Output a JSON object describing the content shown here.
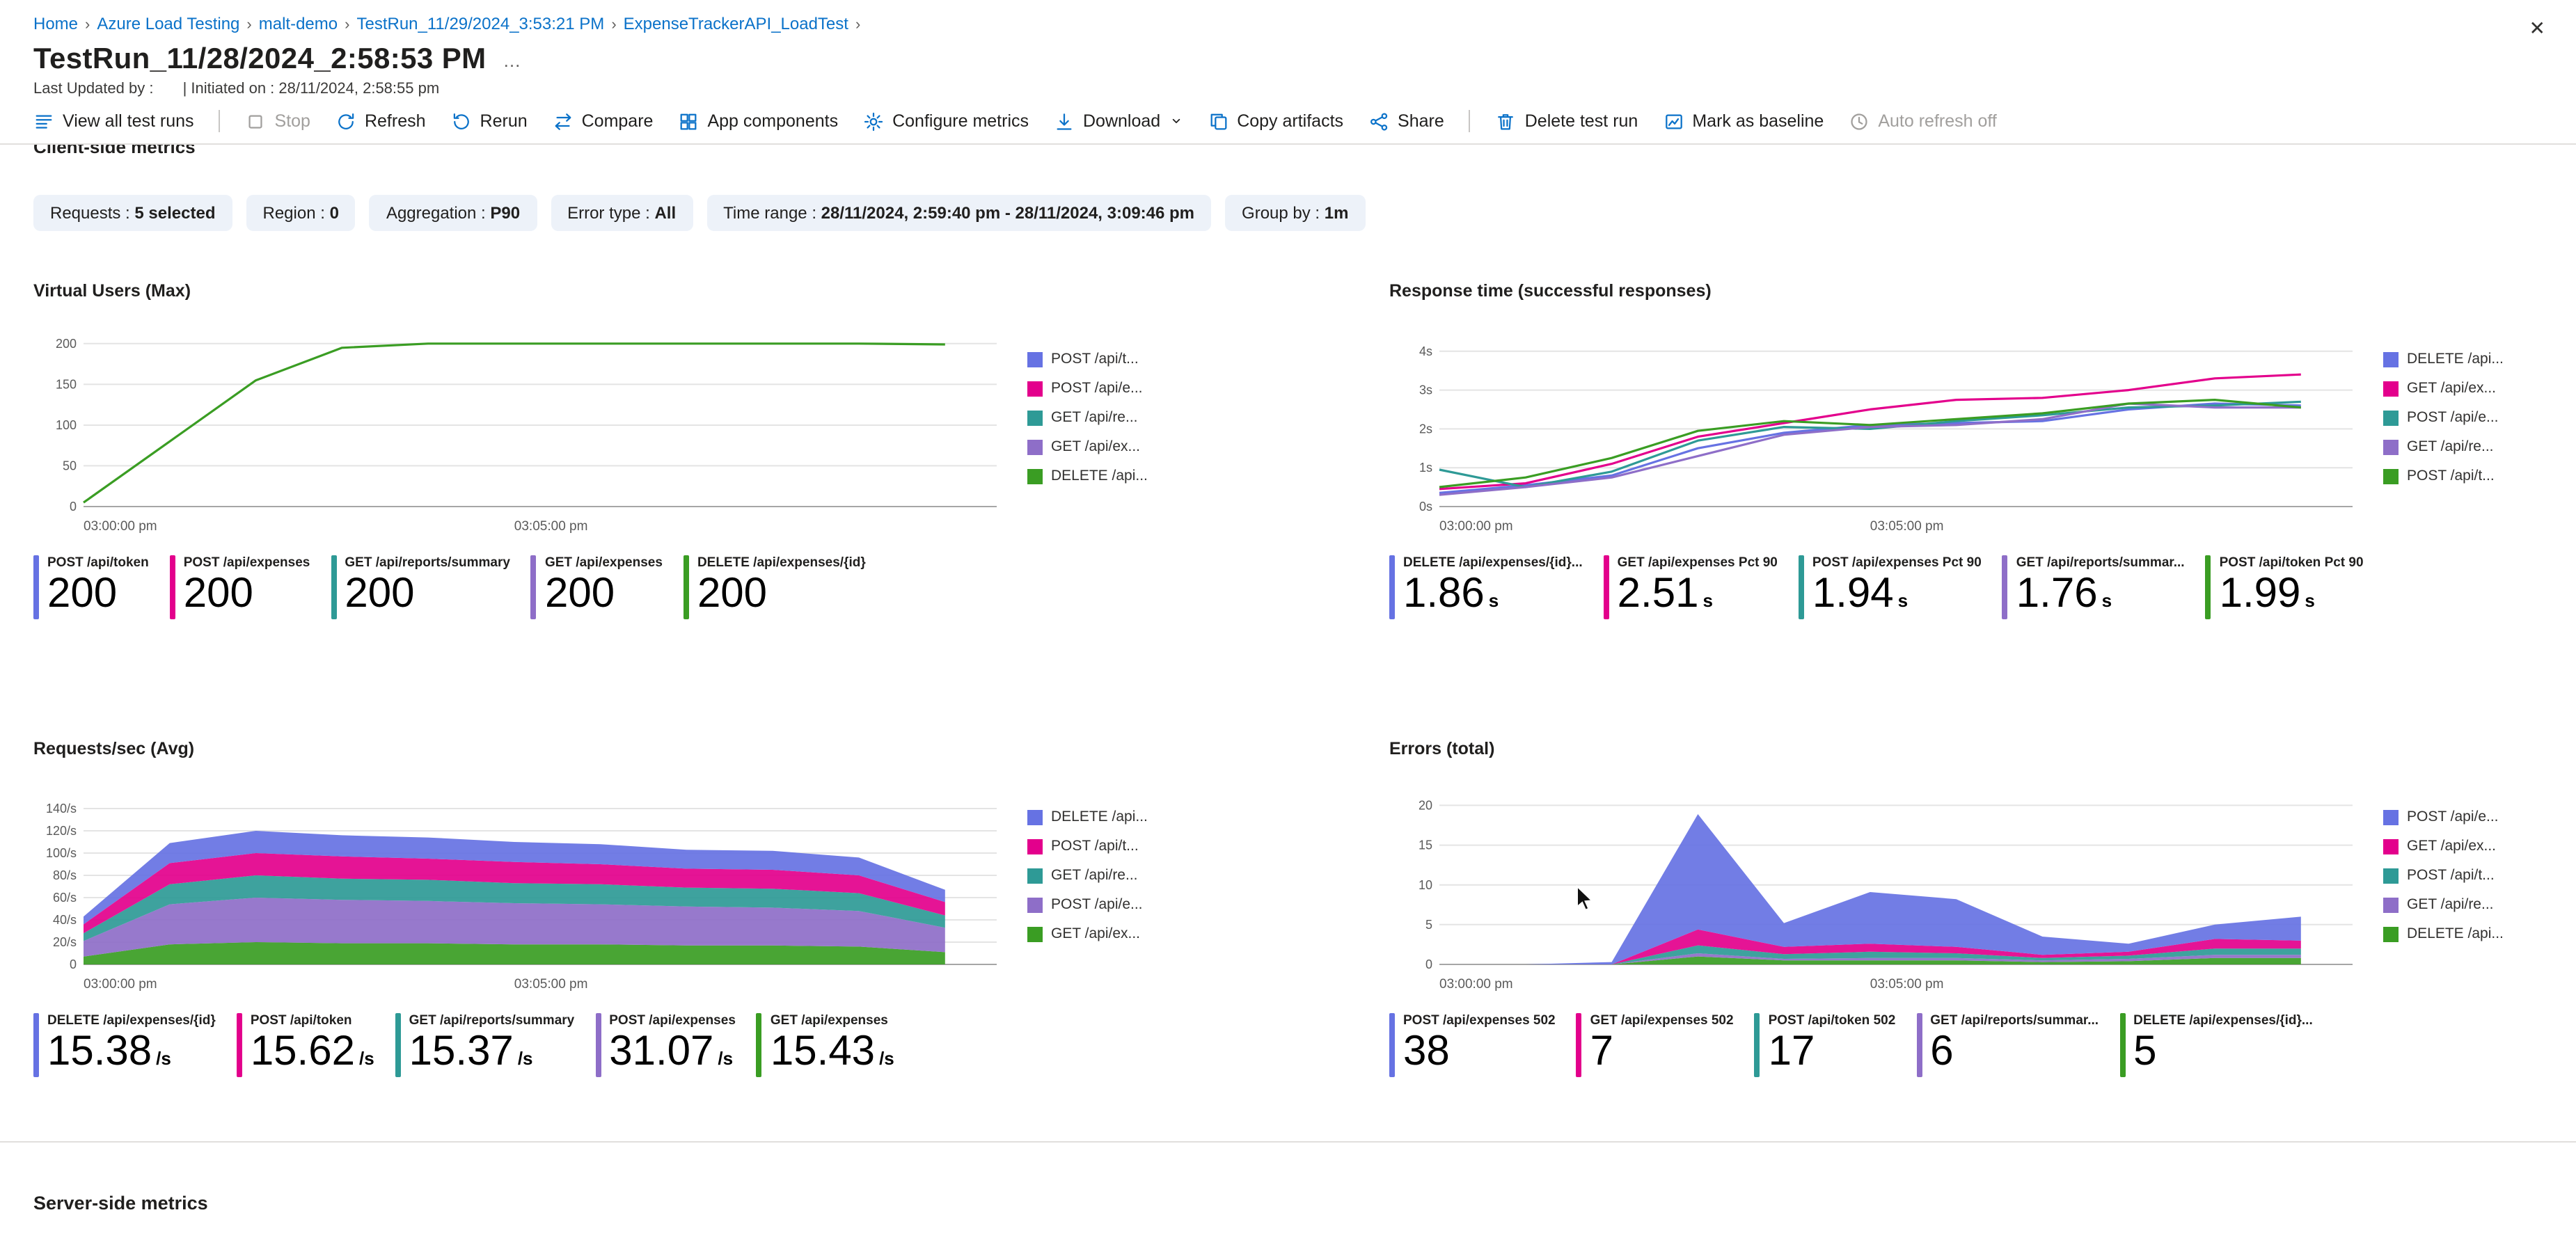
{
  "header": {
    "title": "TestRun_11/28/2024_2:58:53 PM",
    "last_updated_label": "Last Updated by :",
    "initiated_label": "| Initiated on : 28/11/2024, 2:58:55 pm"
  },
  "icons": {
    "more": "…",
    "close": "✕",
    "breadcrumb_separator": "›"
  },
  "breadcrumb": {
    "items": [
      "Home",
      "Azure Load Testing",
      "malt-demo",
      "TestRun_11/29/2024_3:53:21 PM",
      "ExpenseTrackerAPI_LoadTest"
    ]
  },
  "toolbar": {
    "items": [
      {
        "label": "View all test runs",
        "icon": "runs"
      },
      {
        "type": "divider"
      },
      {
        "label": "Stop",
        "icon": "stop",
        "disabled": true
      },
      {
        "label": "Refresh",
        "icon": "refresh"
      },
      {
        "label": "Rerun",
        "icon": "rerun"
      },
      {
        "label": "Compare",
        "icon": "compare"
      },
      {
        "label": "App components",
        "icon": "components"
      },
      {
        "label": "Configure metrics",
        "icon": "gear"
      },
      {
        "label": "Download",
        "icon": "download",
        "chevron": true
      },
      {
        "label": "Copy artifacts",
        "icon": "copy"
      },
      {
        "label": "Share",
        "icon": "share"
      },
      {
        "type": "divider"
      },
      {
        "label": "Delete test run",
        "icon": "trash"
      },
      {
        "label": "Mark as baseline",
        "icon": "baseline"
      },
      {
        "label": "Auto refresh off",
        "icon": "clock",
        "disabled": true
      }
    ]
  },
  "sections": {
    "client_side": "Client-side metrics",
    "server_side": "Server-side metrics"
  },
  "filters": [
    {
      "label": "Requests",
      "value": "5 selected"
    },
    {
      "label": "Region",
      "value": "0"
    },
    {
      "label": "Aggregation",
      "value": "P90"
    },
    {
      "label": "Error type",
      "value": "All"
    },
    {
      "label": "Time range",
      "value": "28/11/2024, 2:59:40 pm - 28/11/2024, 3:09:46 pm"
    },
    {
      "label": "Group by",
      "value": "1m"
    }
  ],
  "palette": {
    "blue": "#6672E3",
    "magenta": "#E3008C",
    "teal": "#2E9A96",
    "purple": "#8E6EC8",
    "green": "#3A9D23"
  },
  "chart_data": [
    {
      "title": "Virtual Users (Max)",
      "type": "line",
      "ymax": 205,
      "xmax": 10.6,
      "yticks": [
        {
          "v": 200,
          "label": "200"
        },
        {
          "v": 150,
          "label": "150"
        },
        {
          "v": 100,
          "label": "100"
        },
        {
          "v": 50,
          "label": "50"
        },
        {
          "v": 0,
          "label": "0"
        }
      ],
      "xticks": [
        {
          "x": 0,
          "label": "03:00:00 pm"
        },
        {
          "x": 5,
          "label": "03:05:00 pm"
        }
      ],
      "legend": [
        {
          "label": "POST /api/t...",
          "color": "#6672E3"
        },
        {
          "label": "POST /api/e...",
          "color": "#E3008C"
        },
        {
          "label": "GET /api/re...",
          "color": "#2E9A96"
        },
        {
          "label": "GET /api/ex...",
          "color": "#8E6EC8"
        },
        {
          "label": "DELETE /api...",
          "color": "#3A9D23"
        }
      ],
      "series": [
        {
          "name": "DELETE /api/expenses/{id}",
          "color": "#3A9D23",
          "values": [
            5,
            80,
            155,
            195,
            200,
            200,
            200,
            200,
            200,
            200,
            199
          ]
        }
      ],
      "stats": [
        {
          "label": "POST /api/token",
          "value": "200",
          "unit": "",
          "color": "#6672E3"
        },
        {
          "label": "POST /api/expenses",
          "value": "200",
          "unit": "",
          "color": "#E3008C"
        },
        {
          "label": "GET /api/reports/summary",
          "value": "200",
          "unit": "",
          "color": "#2E9A96"
        },
        {
          "label": "GET /api/expenses",
          "value": "200",
          "unit": "",
          "color": "#8E6EC8"
        },
        {
          "label": "DELETE /api/expenses/{id}",
          "value": "200",
          "unit": "",
          "color": "#3A9D23"
        }
      ]
    },
    {
      "title": "Response time (successful responses)",
      "type": "line",
      "ymax": 4.3,
      "xmax": 10.6,
      "yticks": [
        {
          "v": 4,
          "label": "4s"
        },
        {
          "v": 3,
          "label": "3s"
        },
        {
          "v": 2,
          "label": "2s"
        },
        {
          "v": 1,
          "label": "1s"
        },
        {
          "v": 0,
          "label": "0s"
        }
      ],
      "xticks": [
        {
          "x": 0,
          "label": "03:00:00 pm"
        },
        {
          "x": 5,
          "label": "03:05:00 pm"
        }
      ],
      "legend": [
        {
          "label": "DELETE /api...",
          "color": "#6672E3"
        },
        {
          "label": "GET /api/ex...",
          "color": "#E3008C"
        },
        {
          "label": "POST /api/e...",
          "color": "#2E9A96"
        },
        {
          "label": "GET /api/re...",
          "color": "#8E6EC8"
        },
        {
          "label": "POST /api/t...",
          "color": "#3A9D23"
        }
      ],
      "series": [
        {
          "name": "DELETE /api/expenses/{id}",
          "color": "#6672E3",
          "values": [
            0.35,
            0.55,
            0.8,
            1.5,
            1.9,
            2.1,
            2.15,
            2.2,
            2.5,
            2.65,
            2.6
          ]
        },
        {
          "name": "GET /api/expenses",
          "color": "#E3008C",
          "values": [
            0.45,
            0.6,
            1.1,
            1.8,
            2.15,
            2.5,
            2.75,
            2.8,
            3.0,
            3.3,
            3.4
          ]
        },
        {
          "name": "POST /api/expenses",
          "color": "#2E9A96",
          "values": [
            0.95,
            0.5,
            0.9,
            1.7,
            2.05,
            2.0,
            2.2,
            2.35,
            2.55,
            2.6,
            2.7
          ]
        },
        {
          "name": "GET /api/reports/summary",
          "color": "#8E6EC8",
          "values": [
            0.3,
            0.5,
            0.75,
            1.3,
            1.85,
            2.05,
            2.1,
            2.25,
            2.65,
            2.55,
            2.55
          ]
        },
        {
          "name": "POST /api/token",
          "color": "#3A9D23",
          "values": [
            0.5,
            0.75,
            1.25,
            1.95,
            2.2,
            2.1,
            2.25,
            2.4,
            2.65,
            2.75,
            2.55
          ]
        }
      ],
      "stats": [
        {
          "label": "DELETE /api/expenses/{id}...",
          "value": "1.86",
          "unit": "s",
          "color": "#6672E3"
        },
        {
          "label": "GET /api/expenses Pct 90",
          "value": "2.51",
          "unit": "s",
          "color": "#E3008C"
        },
        {
          "label": "POST /api/expenses Pct 90",
          "value": "1.94",
          "unit": "s",
          "color": "#2E9A96"
        },
        {
          "label": "GET /api/reports/summar...",
          "value": "1.76",
          "unit": "s",
          "color": "#8E6EC8"
        },
        {
          "label": "POST /api/token Pct 90",
          "value": "1.99",
          "unit": "s",
          "color": "#3A9D23"
        }
      ]
    },
    {
      "title": "Requests/sec (Avg)",
      "type": "area",
      "ymax": 150,
      "xmax": 10.6,
      "yticks": [
        {
          "v": 140,
          "label": "140/s"
        },
        {
          "v": 120,
          "label": "120/s"
        },
        {
          "v": 100,
          "label": "100/s"
        },
        {
          "v": 80,
          "label": "80/s"
        },
        {
          "v": 60,
          "label": "60/s"
        },
        {
          "v": 40,
          "label": "40/s"
        },
        {
          "v": 20,
          "label": "20/s"
        },
        {
          "v": 0,
          "label": "0"
        }
      ],
      "xticks": [
        {
          "x": 0,
          "label": "03:00:00 pm"
        },
        {
          "x": 5,
          "label": "03:05:00 pm"
        }
      ],
      "legend": [
        {
          "label": "DELETE /api...",
          "color": "#6672E3"
        },
        {
          "label": "POST /api/t...",
          "color": "#E3008C"
        },
        {
          "label": "GET /api/re...",
          "color": "#2E9A96"
        },
        {
          "label": "POST /api/e...",
          "color": "#8E6EC8"
        },
        {
          "label": "GET /api/ex...",
          "color": "#3A9D23"
        }
      ],
      "series": [
        {
          "name": "GET /api/expenses",
          "color": "#3A9D23",
          "values": [
            7,
            18,
            20,
            19,
            19,
            18,
            18,
            17,
            17,
            16,
            11
          ]
        },
        {
          "name": "POST /api/expenses",
          "color": "#8E6EC8",
          "values": [
            14,
            36,
            40,
            39,
            38,
            37,
            36,
            35,
            34,
            32,
            22
          ]
        },
        {
          "name": "GET /api/reports/summary",
          "color": "#2E9A96",
          "values": [
            7,
            18,
            20,
            19,
            19,
            18,
            18,
            17,
            17,
            16,
            11
          ]
        },
        {
          "name": "POST /api/token",
          "color": "#E3008C",
          "values": [
            8,
            19,
            20,
            20,
            19,
            19,
            18,
            17,
            17,
            16,
            12
          ]
        },
        {
          "name": "DELETE /api/expenses/{id}",
          "color": "#6672E3",
          "values": [
            7,
            18,
            20,
            19,
            19,
            18,
            18,
            17,
            17,
            16,
            11
          ]
        }
      ],
      "stats": [
        {
          "label": "DELETE /api/expenses/{id}",
          "value": "15.38",
          "unit": "/s",
          "color": "#6672E3"
        },
        {
          "label": "POST /api/token",
          "value": "15.62",
          "unit": "/s",
          "color": "#E3008C"
        },
        {
          "label": "GET /api/reports/summary",
          "value": "15.37",
          "unit": "/s",
          "color": "#2E9A96"
        },
        {
          "label": "POST /api/expenses",
          "value": "31.07",
          "unit": "/s",
          "color": "#8E6EC8"
        },
        {
          "label": "GET /api/expenses",
          "value": "15.43",
          "unit": "/s",
          "color": "#3A9D23"
        }
      ]
    },
    {
      "title": "Errors (total)",
      "type": "area",
      "ymax": 21,
      "xmax": 10.6,
      "yticks": [
        {
          "v": 20,
          "label": "20"
        },
        {
          "v": 15,
          "label": "15"
        },
        {
          "v": 10,
          "label": "10"
        },
        {
          "v": 5,
          "label": "5"
        },
        {
          "v": 0,
          "label": "0"
        }
      ],
      "xticks": [
        {
          "x": 0,
          "label": "03:00:00 pm"
        },
        {
          "x": 5,
          "label": "03:05:00 pm"
        }
      ],
      "legend": [
        {
          "label": "POST /api/e...",
          "color": "#6672E3"
        },
        {
          "label": "GET /api/ex...",
          "color": "#E3008C"
        },
        {
          "label": "POST /api/t...",
          "color": "#2E9A96"
        },
        {
          "label": "GET /api/re...",
          "color": "#8E6EC8"
        },
        {
          "label": "DELETE /api...",
          "color": "#3A9D23"
        }
      ],
      "series": [
        {
          "name": "DELETE /api/expenses/{id}",
          "color": "#3A9D23",
          "values": [
            0,
            0,
            0,
            1,
            0.5,
            0.5,
            0.5,
            0.3,
            0.4,
            0.8,
            0.8
          ]
        },
        {
          "name": "GET /api/reports/summary",
          "color": "#8E6EC8",
          "values": [
            0,
            0,
            0,
            0.4,
            0.2,
            0.3,
            0.3,
            0.2,
            0.3,
            0.4,
            0.4
          ]
        },
        {
          "name": "POST /api/token",
          "color": "#2E9A96",
          "values": [
            0,
            0,
            0,
            1,
            0.6,
            0.8,
            0.6,
            0.3,
            0.4,
            0.8,
            0.8
          ]
        },
        {
          "name": "GET /api/expenses",
          "color": "#E3008C",
          "values": [
            0,
            0,
            0,
            2,
            0.9,
            1,
            0.8,
            0.4,
            0.5,
            1.2,
            1
          ]
        },
        {
          "name": "POST /api/expenses",
          "color": "#6672E3",
          "values": [
            0,
            0,
            0.3,
            14.5,
            3,
            6.5,
            6,
            2.3,
            1,
            1.8,
            3
          ]
        }
      ],
      "stats": [
        {
          "label": "POST /api/expenses 502",
          "value": "38",
          "unit": "",
          "color": "#6672E3"
        },
        {
          "label": "GET /api/expenses 502",
          "value": "7",
          "unit": "",
          "color": "#E3008C"
        },
        {
          "label": "POST /api/token 502",
          "value": "17",
          "unit": "",
          "color": "#2E9A96"
        },
        {
          "label": "GET /api/reports/summar...",
          "value": "6",
          "unit": "",
          "color": "#8E6EC8"
        },
        {
          "label": "DELETE /api/expenses/{id}...",
          "value": "5",
          "unit": "",
          "color": "#3A9D23"
        }
      ]
    }
  ]
}
